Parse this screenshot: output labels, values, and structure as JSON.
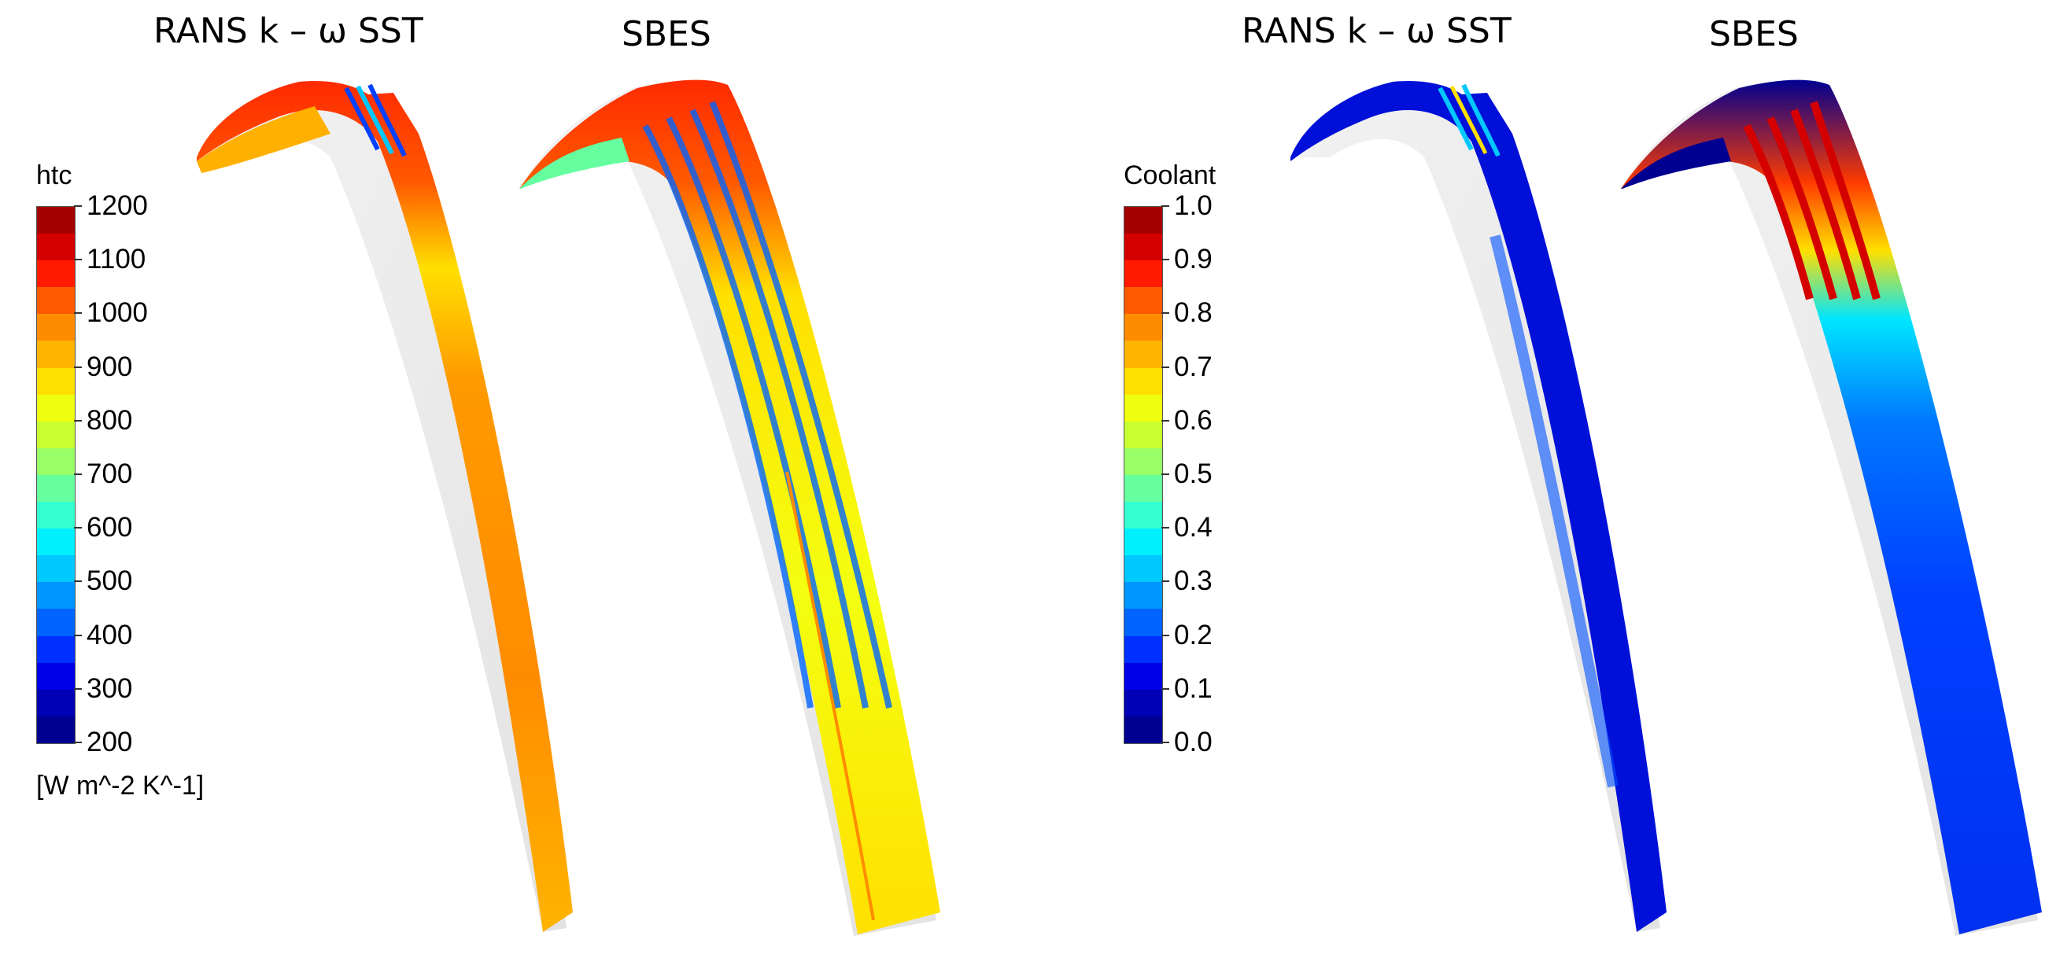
{
  "panels": [
    {
      "title": "RANS k – ω SST"
    },
    {
      "title": "SBES"
    },
    {
      "title": "RANS k – ω SST"
    },
    {
      "title": "SBES"
    }
  ],
  "colorbar_htc": {
    "title": "htc",
    "unit": "[W m^-2 K^-1]",
    "ticks": [
      "1200",
      "1100",
      "1000",
      "900",
      "800",
      "700",
      "600",
      "500",
      "400",
      "300",
      "200"
    ]
  },
  "colorbar_coolant": {
    "title": "Coolant",
    "unit": "",
    "ticks": [
      "1.0",
      "0.9",
      "0.8",
      "0.7",
      "0.6",
      "0.5",
      "0.4",
      "0.3",
      "0.2",
      "0.1",
      "0.0"
    ]
  },
  "colormap": [
    "#a50000",
    "#d40000",
    "#ff1a00",
    "#ff5a00",
    "#ff8c00",
    "#ffb400",
    "#ffe000",
    "#f0ff10",
    "#c8ff30",
    "#99ff66",
    "#66ffa0",
    "#33ffd0",
    "#00f0ff",
    "#00c8ff",
    "#0096ff",
    "#0064ff",
    "#0030ff",
    "#0000e6",
    "#0000b4",
    "#000090"
  ]
}
